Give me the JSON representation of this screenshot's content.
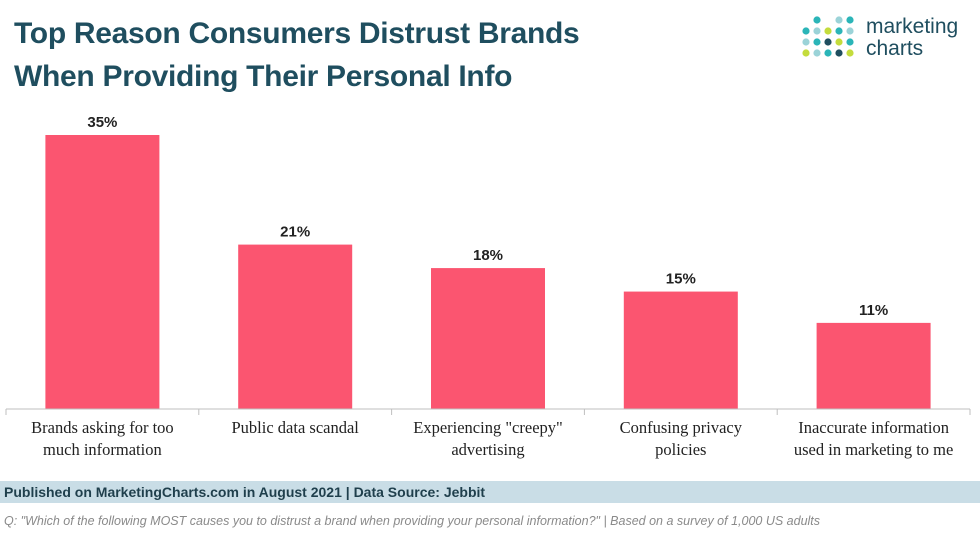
{
  "header": {
    "title_line1": "Top Reason Consumers Distrust Brands",
    "title_line2": "When Providing Their Personal Info"
  },
  "logo": {
    "line1": "marketing",
    "line2": "charts",
    "dot_colors": [
      "#2bb5b8",
      "#9bd3d8",
      "#c4dc3c",
      "#1f4e5f"
    ]
  },
  "chart_data": {
    "type": "bar",
    "categories": [
      [
        "Brands asking for too",
        "much information"
      ],
      [
        "Public data scandal"
      ],
      [
        "Experiencing \"creepy\"",
        "advertising"
      ],
      [
        "Confusing privacy",
        "policies"
      ],
      [
        "Inaccurate information",
        "used in marketing to me"
      ]
    ],
    "values": [
      35,
      21,
      18,
      15,
      11
    ],
    "value_labels": [
      "35%",
      "21%",
      "18%",
      "15%",
      "11%"
    ],
    "ylim": [
      0,
      35
    ],
    "bar_color": "#fb5570",
    "grid": false,
    "legend": "none"
  },
  "footer": {
    "source": "Published on MarketingCharts.com in August 2021 | Data Source: Jebbit",
    "note": "Q: \"Which of the following MOST causes you to distrust a brand when providing your personal information?\" | Based on a survey of 1,000 US adults"
  }
}
